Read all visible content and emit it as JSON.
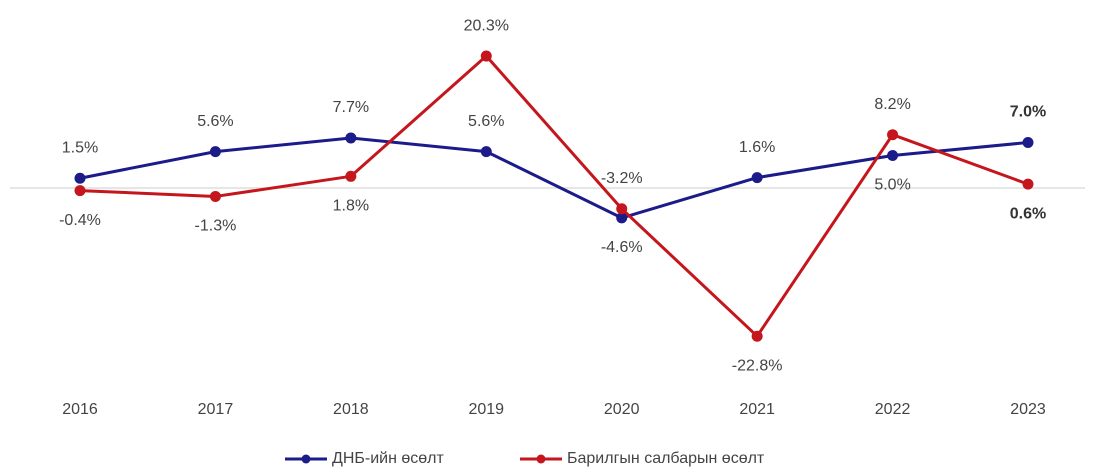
{
  "chart_data": {
    "type": "line",
    "categories": [
      "2016",
      "2017",
      "2018",
      "2019",
      "2020",
      "2021",
      "2022",
      "2023"
    ],
    "ylim": [
      -25,
      22
    ],
    "series": [
      {
        "name": "ДНБ-ийн өсөлт",
        "color": "#1b1b8a",
        "values": [
          1.5,
          5.6,
          7.7,
          5.6,
          -4.6,
          1.6,
          5.0,
          7.0
        ],
        "value_labels": [
          "1.5%",
          "5.6%",
          "7.7%",
          "5.6%",
          "-4.6%",
          "1.6%",
          "5.0%",
          "7.0%"
        ]
      },
      {
        "name": "Барилгын салбарын өсөлт",
        "color": "#c4161c",
        "values": [
          -0.4,
          -1.3,
          1.8,
          20.3,
          -3.2,
          -22.8,
          8.2,
          0.6
        ],
        "value_labels": [
          "-0.4%",
          "-1.3%",
          "1.8%",
          "20.3%",
          "-3.2%",
          "-22.8%",
          "8.2%",
          "0.6%"
        ]
      }
    ],
    "legend": "bottom"
  }
}
